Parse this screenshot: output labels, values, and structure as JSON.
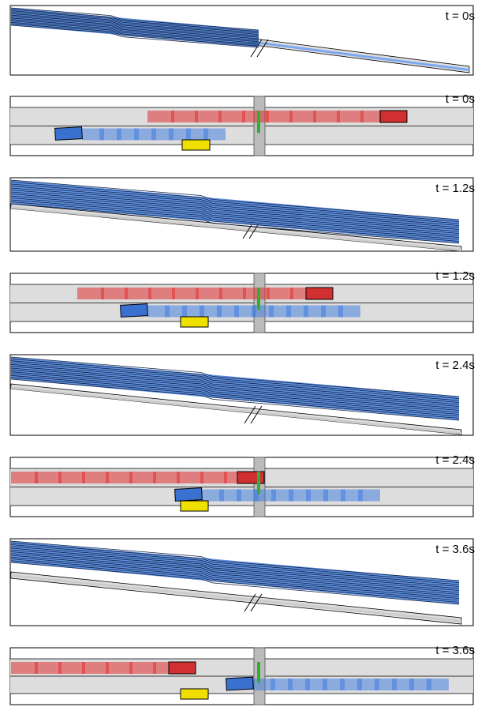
{
  "panels": [
    {
      "label": "t = 0s"
    },
    {
      "label": "t = 0s"
    },
    {
      "label": "t = 1.2s"
    },
    {
      "label": "t = 1.2s"
    },
    {
      "label": "t = 2.4s"
    },
    {
      "label": "t = 2.4s"
    },
    {
      "label": "t = 3.6s"
    },
    {
      "label": "t = 3.6s"
    }
  ]
}
